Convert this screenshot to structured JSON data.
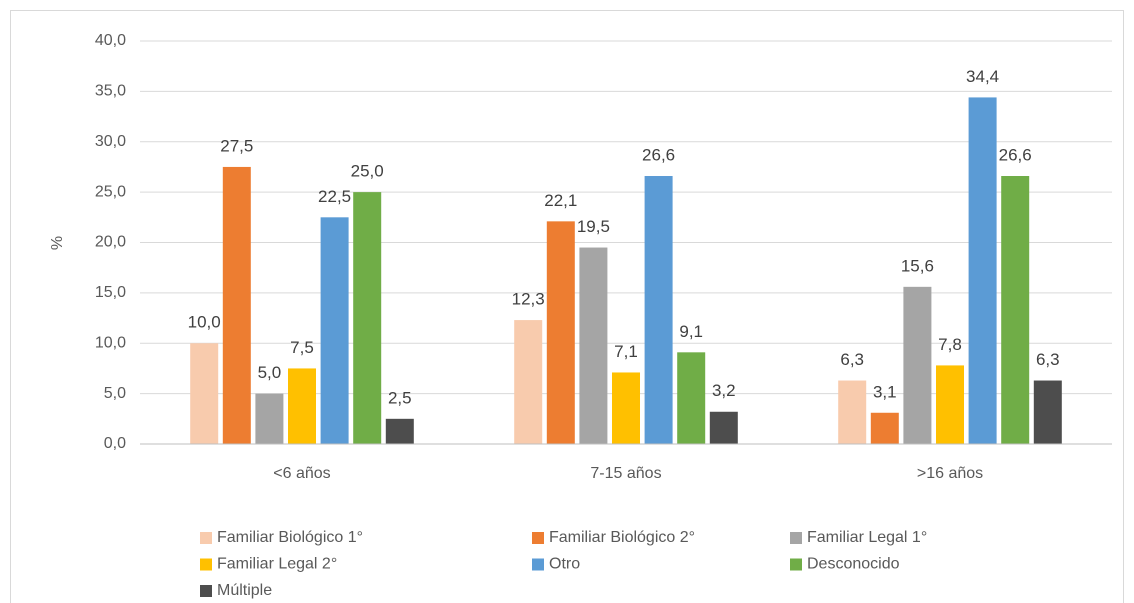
{
  "chart_data": {
    "type": "bar",
    "y_label": "%",
    "categories": [
      "<6 años",
      "7-15 años",
      ">16 años"
    ],
    "series": [
      {
        "name": "Familiar Biológico 1°",
        "color": "#f8cbad",
        "values": [
          10.0,
          12.3,
          6.3
        ],
        "value_labels": [
          "10,0",
          "12,3",
          "6,3"
        ]
      },
      {
        "name": "Familiar Biológico 2°",
        "color": "#ed7d31",
        "values": [
          27.5,
          22.1,
          3.1
        ],
        "value_labels": [
          "27,5",
          "22,1",
          "3,1"
        ]
      },
      {
        "name": "Familiar Legal 1°",
        "color": "#a5a5a5",
        "values": [
          5.0,
          19.5,
          15.6
        ],
        "value_labels": [
          "5,0",
          "19,5",
          "15,6"
        ]
      },
      {
        "name": "Familiar Legal 2°",
        "color": "#ffc000",
        "values": [
          7.5,
          7.1,
          7.8
        ],
        "value_labels": [
          "7,5",
          "7,1",
          "7,8"
        ]
      },
      {
        "name": "Otro",
        "color": "#5b9bd5",
        "values": [
          22.5,
          26.6,
          34.4
        ],
        "value_labels": [
          "22,5",
          "26,6",
          "34,4"
        ]
      },
      {
        "name": "Desconocido",
        "color": "#70ad47",
        "values": [
          25.0,
          9.1,
          26.6
        ],
        "value_labels": [
          "25,0",
          "9,1",
          "26,6"
        ]
      },
      {
        "name": "Múltiple",
        "color": "#4d4d4d",
        "values": [
          2.5,
          3.2,
          6.3
        ],
        "value_labels": [
          "2,5",
          "3,2",
          "6,3"
        ]
      }
    ],
    "ylim": [
      0,
      40
    ],
    "yticks": [
      {
        "value": 0,
        "label": "0,0"
      },
      {
        "value": 5,
        "label": "5,0"
      },
      {
        "value": 10,
        "label": "10,0"
      },
      {
        "value": 15,
        "label": "15,0"
      },
      {
        "value": 20,
        "label": "20,0"
      },
      {
        "value": 25,
        "label": "25,0"
      },
      {
        "value": 30,
        "label": "30,0"
      },
      {
        "value": 35,
        "label": "35,0"
      },
      {
        "value": 40,
        "label": "40,0"
      }
    ],
    "grid": true,
    "legend": "bottom"
  }
}
